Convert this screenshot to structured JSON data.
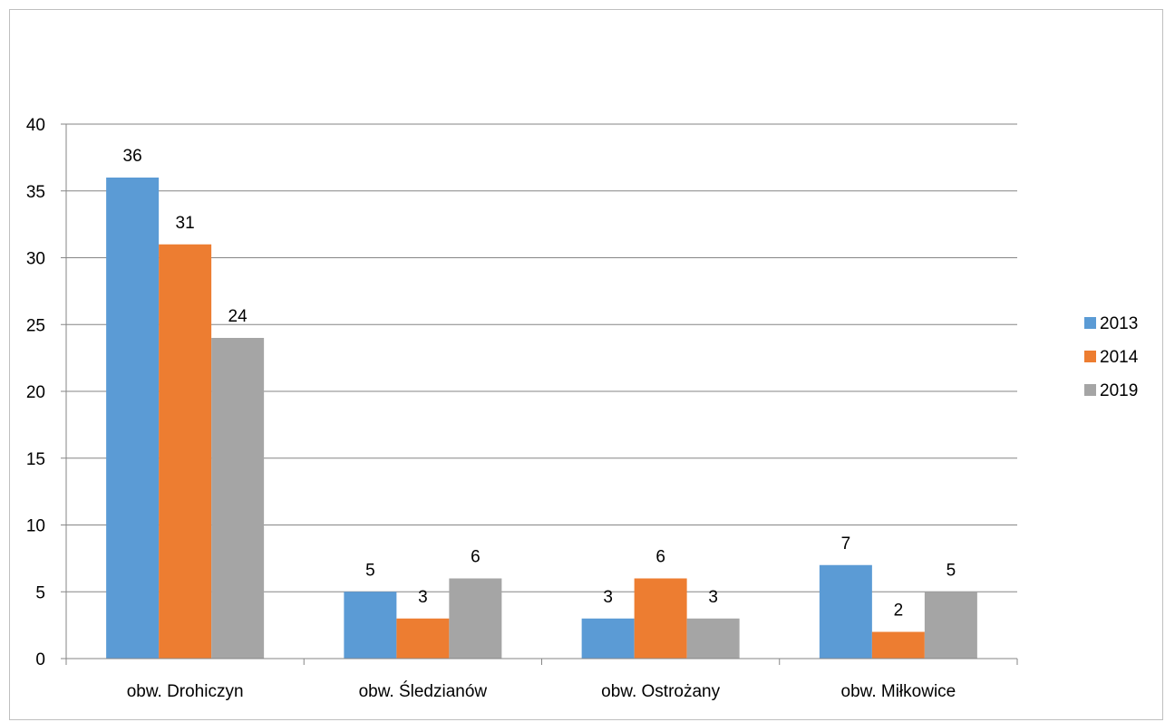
{
  "chart_data": {
    "type": "bar",
    "title": "",
    "xlabel": "",
    "ylabel": "",
    "categories": [
      "obw. Drohiczyn",
      "obw. Śledzianów",
      "obw. Ostrożany",
      "obw. Miłkowice"
    ],
    "series": [
      {
        "name": "2013",
        "color": "#5b9bd5",
        "values": [
          36,
          5,
          3,
          7
        ]
      },
      {
        "name": "2014",
        "color": "#ed7d31",
        "values": [
          31,
          3,
          6,
          2
        ]
      },
      {
        "name": "2019",
        "color": "#a5a5a5",
        "values": [
          24,
          6,
          3,
          5
        ]
      }
    ],
    "ylim": [
      0,
      40
    ],
    "yticks": [
      0,
      5,
      10,
      15,
      20,
      25,
      30,
      35,
      40
    ],
    "grid": true,
    "legend": "right",
    "data_labels": true
  }
}
